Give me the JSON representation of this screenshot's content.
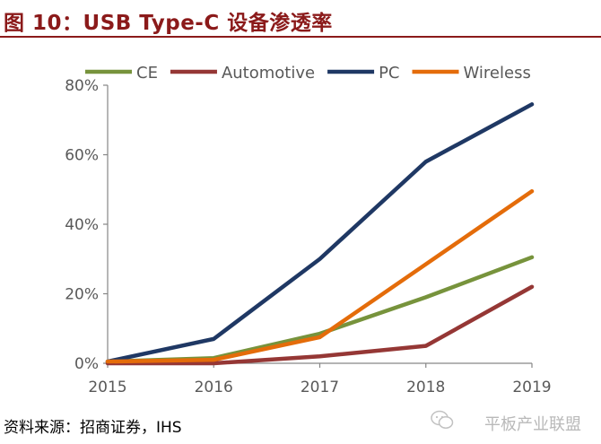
{
  "header": {
    "title": "图 10：USB Type-C 设备渗透率"
  },
  "footer": {
    "source": "资料来源：招商证券，IHS",
    "watermark": "平板产业联盟"
  },
  "chart_data": {
    "type": "line",
    "x": [
      "2015",
      "2016",
      "2017",
      "2018",
      "2019"
    ],
    "ylim": [
      0,
      80
    ],
    "yticks": [
      "0%",
      "20%",
      "40%",
      "60%",
      "80%"
    ],
    "y_tick_values": [
      0,
      20,
      40,
      60,
      80
    ],
    "legend_position": "top",
    "grid": false,
    "series": [
      {
        "name": "CE",
        "color": "#77933c",
        "values": [
          0.5,
          1.5,
          8.5,
          19,
          30.5
        ]
      },
      {
        "name": "Automotive",
        "color": "#953735",
        "values": [
          0,
          0,
          2,
          5,
          22
        ]
      },
      {
        "name": "PC",
        "color": "#1f3864",
        "values": [
          0.5,
          7,
          30,
          58,
          74.5
        ]
      },
      {
        "name": "Wireless",
        "color": "#e46c0a",
        "values": [
          0.5,
          1,
          7.5,
          28.5,
          49.5
        ]
      }
    ]
  }
}
